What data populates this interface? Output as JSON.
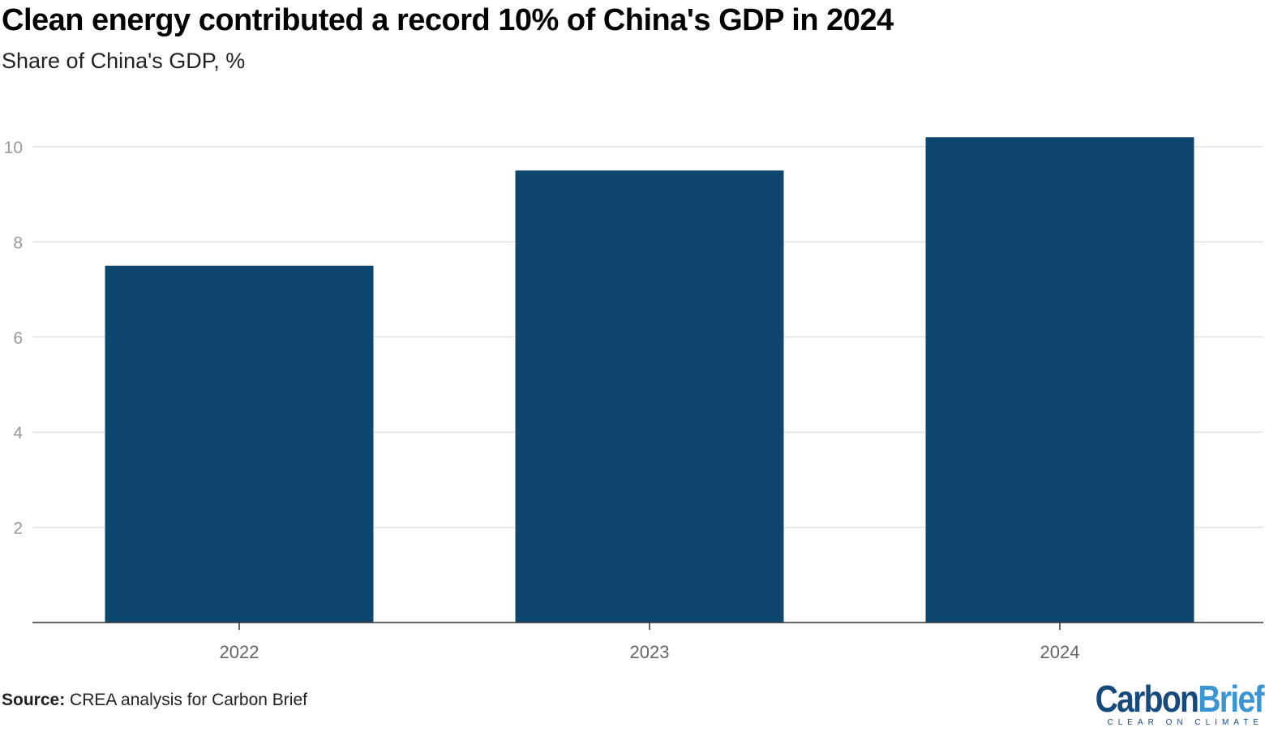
{
  "chart_data": {
    "type": "bar",
    "title": "Clean energy contributed a record 10% of China's GDP in 2024",
    "subtitle": "Share of China's GDP, %",
    "categories": [
      "2022",
      "2023",
      "2024"
    ],
    "values": [
      7.5,
      9.5,
      10.2
    ],
    "ylim": [
      0,
      10.2
    ],
    "yticks": [
      2,
      4,
      6,
      8,
      10
    ],
    "grid": true,
    "bar_color": "#0d4770"
  },
  "source": {
    "label": "Source:",
    "text": " CREA analysis for Carbon Brief"
  },
  "logo": {
    "part1": "Carbon",
    "part2": "Brief",
    "tagline": "CLEAR ON CLIMATE"
  }
}
